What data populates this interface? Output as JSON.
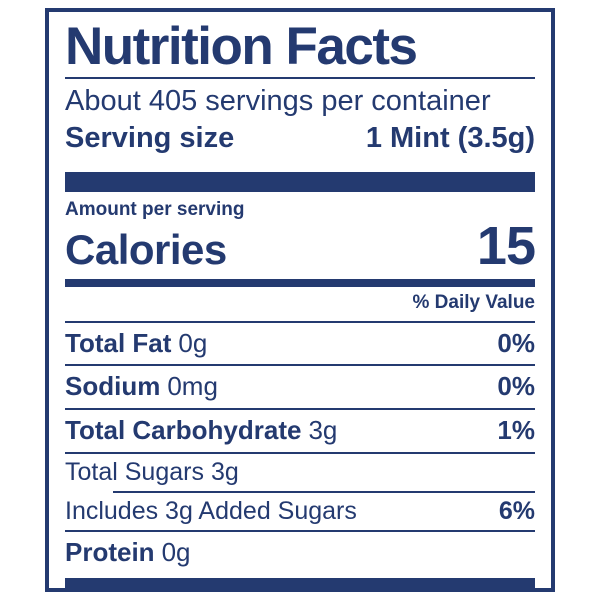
{
  "colors": {
    "navy": "#243a70",
    "background": "#ffffff"
  },
  "label": {
    "title": "Nutrition Facts",
    "servings_per_container": "About 405 servings per container",
    "serving_size_label": "Serving size",
    "serving_size_value": "1 Mint (3.5g)",
    "amount_per_serving": "Amount per serving",
    "calories_label": "Calories",
    "calories_value": "15",
    "daily_value_header": "% Daily Value",
    "rows": [
      {
        "name": "Total Fat",
        "amount": "0g",
        "daily_value": "0%"
      },
      {
        "name": "Sodium",
        "amount": "0mg",
        "daily_value": "0%"
      },
      {
        "name": "Total Carbohydrate",
        "amount": "3g",
        "daily_value": "1%"
      },
      {
        "name": "Total Sugars",
        "amount": "3g",
        "daily_value": ""
      },
      {
        "name": "Includes 3g Added Sugars",
        "amount": "",
        "daily_value": "6%"
      },
      {
        "name": "Protein",
        "amount": "0g",
        "daily_value": ""
      }
    ]
  }
}
